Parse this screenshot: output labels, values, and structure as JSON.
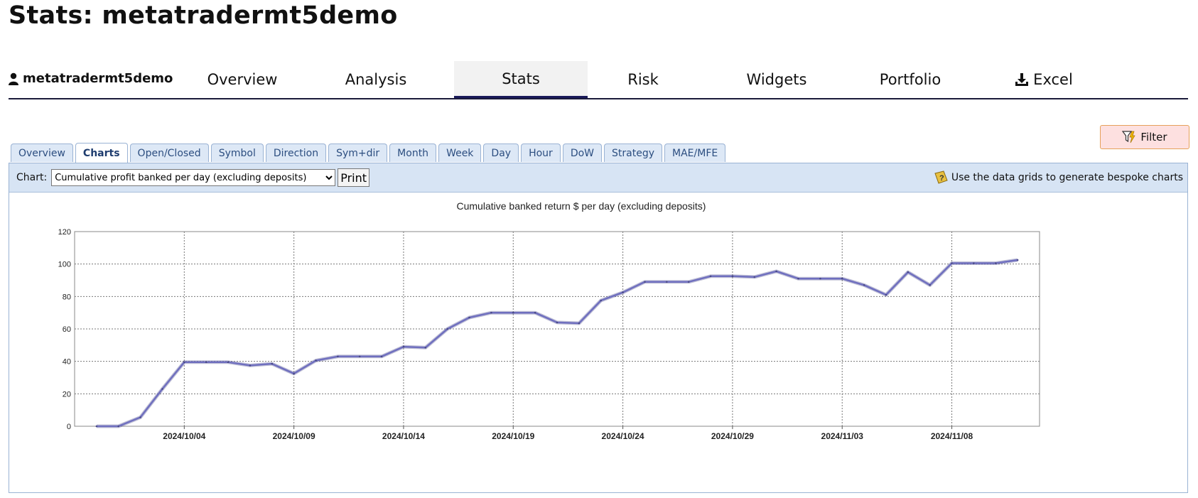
{
  "page": {
    "title": "Stats: metatradermt5demo"
  },
  "account": {
    "name": "metatradermt5demo",
    "icon": "user-icon"
  },
  "nav": {
    "items": [
      {
        "label": "Overview",
        "active": false
      },
      {
        "label": "Analysis",
        "active": false
      },
      {
        "label": "Stats",
        "active": true
      },
      {
        "label": "Risk",
        "active": false
      },
      {
        "label": "Widgets",
        "active": false
      },
      {
        "label": "Portfolio",
        "active": false
      },
      {
        "label": "Excel",
        "active": false,
        "icon": "download-icon"
      }
    ]
  },
  "filter": {
    "label": "Filter",
    "icon": "filter-icon"
  },
  "subtabs": [
    {
      "label": "Overview",
      "active": false
    },
    {
      "label": "Charts",
      "active": true
    },
    {
      "label": "Open/Closed",
      "active": false
    },
    {
      "label": "Symbol",
      "active": false
    },
    {
      "label": "Direction",
      "active": false
    },
    {
      "label": "Sym+dir",
      "active": false
    },
    {
      "label": "Month",
      "active": false
    },
    {
      "label": "Week",
      "active": false
    },
    {
      "label": "Day",
      "active": false
    },
    {
      "label": "Hour",
      "active": false
    },
    {
      "label": "DoW",
      "active": false
    },
    {
      "label": "Strategy",
      "active": false
    },
    {
      "label": "MAE/MFE",
      "active": false
    }
  ],
  "toolbar": {
    "chart_label": "Chart:",
    "chart_select_value": "Cumulative profit banked per day (excluding deposits)",
    "print_label": "Print",
    "hint_text": "Use the data grids to generate bespoke charts",
    "hint_icon": "help-icon"
  },
  "colors": {
    "line": "#6f6fbf",
    "accent": "#1a1a5a"
  },
  "chart_data": {
    "type": "line",
    "title": "Cumulative banked return $ per day (excluding deposits)",
    "xlabel": "",
    "ylabel": "",
    "ylim": [
      0,
      120
    ],
    "yticks": [
      0,
      20,
      40,
      60,
      80,
      100,
      120
    ],
    "x_date_range": [
      "2024-09-29",
      "2024-11-12"
    ],
    "xticks": [
      "2024/10/04",
      "2024/10/09",
      "2024/10/14",
      "2024/10/19",
      "2024/10/24",
      "2024/10/29",
      "2024/11/03",
      "2024/11/08"
    ],
    "grid": true,
    "legend": "none",
    "series": [
      {
        "x": [
          "2024-09-30",
          "2024-10-01",
          "2024-10-02",
          "2024-10-03",
          "2024-10-04",
          "2024-10-05",
          "2024-10-06",
          "2024-10-07",
          "2024-10-08",
          "2024-10-09",
          "2024-10-10",
          "2024-10-11",
          "2024-10-12",
          "2024-10-13",
          "2024-10-14",
          "2024-10-15",
          "2024-10-16",
          "2024-10-17",
          "2024-10-18",
          "2024-10-19",
          "2024-10-20",
          "2024-10-21",
          "2024-10-22",
          "2024-10-23",
          "2024-10-24",
          "2024-10-25",
          "2024-10-26",
          "2024-10-27",
          "2024-10-28",
          "2024-10-29",
          "2024-10-30",
          "2024-10-31",
          "2024-11-01",
          "2024-11-02",
          "2024-11-03",
          "2024-11-04",
          "2024-11-05",
          "2024-11-06",
          "2024-11-07",
          "2024-11-08",
          "2024-11-09",
          "2024-11-10",
          "2024-11-11"
        ],
        "values": [
          0,
          0,
          5.5,
          23,
          39.5,
          39.5,
          39.5,
          37.5,
          38.5,
          32.5,
          40.5,
          43,
          43,
          43,
          49,
          48.5,
          60,
          67,
          70,
          70,
          70,
          64,
          63.5,
          77.5,
          82.5,
          89,
          89,
          89,
          92.5,
          92.5,
          92,
          95.5,
          91,
          91,
          91,
          87,
          81,
          95,
          87,
          100.5,
          100.5,
          100.5,
          102.5
        ]
      }
    ]
  }
}
